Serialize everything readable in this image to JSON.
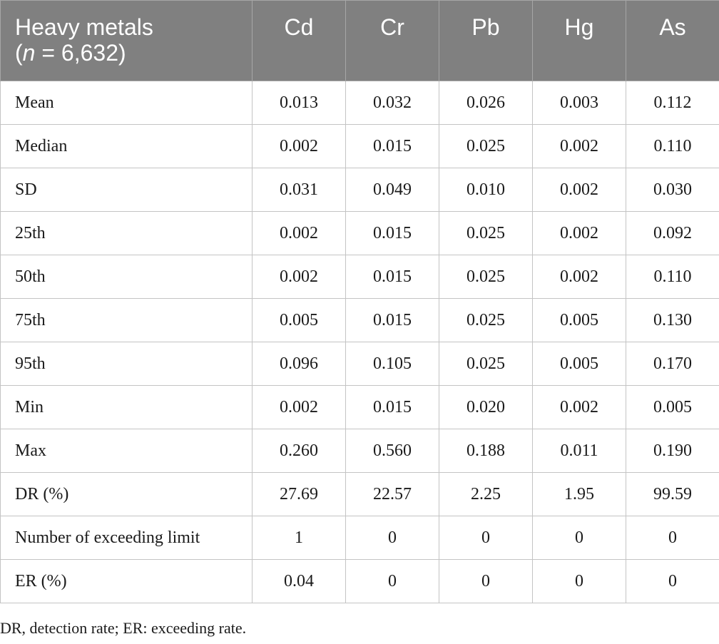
{
  "table": {
    "header": {
      "first_line1": "Heavy metals",
      "first_paren_open": "(",
      "first_n": "n",
      "first_rest": " = 6,632)",
      "columns": [
        "Cd",
        "Cr",
        "Pb",
        "Hg",
        "As"
      ]
    },
    "rows": [
      {
        "label": "Mean",
        "values": [
          "0.013",
          "0.032",
          "0.026",
          "0.003",
          "0.112"
        ]
      },
      {
        "label": "Median",
        "values": [
          "0.002",
          "0.015",
          "0.025",
          "0.002",
          "0.110"
        ]
      },
      {
        "label": "SD",
        "values": [
          "0.031",
          "0.049",
          "0.010",
          "0.002",
          "0.030"
        ]
      },
      {
        "label": "25th",
        "values": [
          "0.002",
          "0.015",
          "0.025",
          "0.002",
          "0.092"
        ]
      },
      {
        "label": "50th",
        "values": [
          "0.002",
          "0.015",
          "0.025",
          "0.002",
          "0.110"
        ]
      },
      {
        "label": "75th",
        "values": [
          "0.005",
          "0.015",
          "0.025",
          "0.005",
          "0.130"
        ]
      },
      {
        "label": "95th",
        "values": [
          "0.096",
          "0.105",
          "0.025",
          "0.005",
          "0.170"
        ]
      },
      {
        "label": "Min",
        "values": [
          "0.002",
          "0.015",
          "0.020",
          "0.002",
          "0.005"
        ]
      },
      {
        "label": "Max",
        "values": [
          "0.260",
          "0.560",
          "0.188",
          "0.011",
          "0.190"
        ]
      },
      {
        "label": "DR (%)",
        "values": [
          "27.69",
          "22.57",
          "2.25",
          "1.95",
          "99.59"
        ]
      },
      {
        "label": "Number of exceeding limit",
        "values": [
          "1",
          "0",
          "0",
          "0",
          "0"
        ]
      },
      {
        "label": "ER (%)",
        "values": [
          "0.04",
          "0",
          "0",
          "0",
          "0"
        ]
      }
    ]
  },
  "footnote": "DR, detection rate; ER: exceeding rate."
}
